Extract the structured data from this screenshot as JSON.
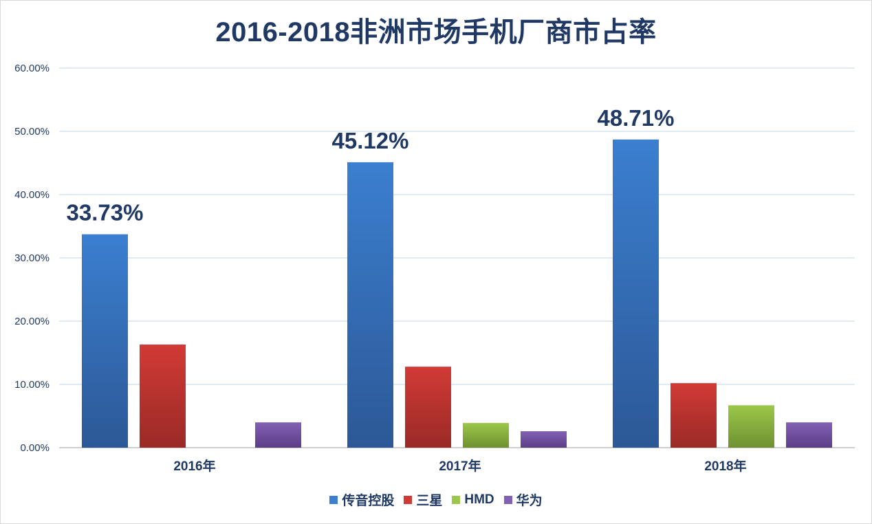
{
  "chart_data": {
    "type": "bar",
    "title": "2016-2018非洲市场手机厂商市占率",
    "categories": [
      "2016年",
      "2017年",
      "2018年"
    ],
    "ylim": [
      0,
      60
    ],
    "yticks": [
      "0.00%",
      "10.00%",
      "20.00%",
      "30.00%",
      "40.00%",
      "50.00%",
      "60.00%"
    ],
    "grid": true,
    "legend_position": "bottom",
    "series": [
      {
        "name": "传音控股",
        "values": [
          33.73,
          45.12,
          48.71
        ],
        "color_top": "#3b7fd0",
        "color_bottom": "#2c5896",
        "labels": [
          "33.73%",
          "45.12%",
          "48.71%"
        ]
      },
      {
        "name": "三星",
        "values": [
          16.3,
          12.8,
          10.2
        ],
        "color_top": "#d23a36",
        "color_bottom": "#9a2a26"
      },
      {
        "name": "HMD",
        "values": [
          0,
          3.9,
          6.7
        ],
        "color_top": "#9bc84a",
        "color_bottom": "#6f9030"
      },
      {
        "name": "华为",
        "values": [
          4.0,
          2.6,
          4.0
        ],
        "color_top": "#8260b4",
        "color_bottom": "#5c3e86"
      }
    ]
  }
}
